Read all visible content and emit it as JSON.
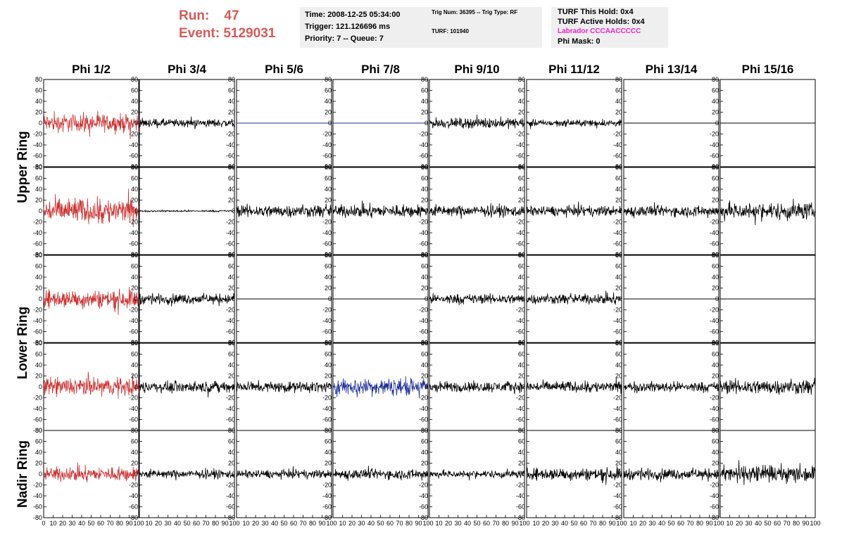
{
  "header": {
    "run_label": "Run:",
    "run_value": "47",
    "event_label": "Event:",
    "event_value": "5129031"
  },
  "time_box": {
    "time": "Time: 2008-12-25 05:34:00",
    "trigger": "Trigger: 121.126696 ms",
    "priority": "Priority: 7 -- Queue: 7"
  },
  "trig_box": {
    "trig": "Trig Num: 36395 -- Trig Type: RF",
    "turf": "TURF: 101940"
  },
  "turf_box": {
    "this_hold": "TURF This Hold: 0x4",
    "active_holds": "TURF Active Holds: 0x4",
    "labrador": "Labrador CCCAACCCCC",
    "phi_mask": "Phi Mask: 0"
  },
  "colors": {
    "red_trace": "#cc3333",
    "blue_trace": "#1f2f99",
    "black_trace": "#000000",
    "run_text": "#d55a5a",
    "labrador_text": "#ee22cc",
    "info_bg": "#efefef"
  },
  "chart_data": {
    "type": "line",
    "columns": [
      "Phi 1/2",
      "Phi 3/4",
      "Phi 5/6",
      "Phi 7/8",
      "Phi 9/10",
      "Phi 11/12",
      "Phi 13/14",
      "Phi 15/16"
    ],
    "row_groups": [
      "Upper Ring",
      "Lower Ring",
      "Nadir Ring"
    ],
    "rows": 5,
    "xlim": [
      0,
      100
    ],
    "ylim": [
      -80,
      80
    ],
    "y_ticks": [
      80,
      60,
      40,
      20,
      0,
      -20,
      -40,
      -60,
      -80
    ],
    "x_ticks": [
      0,
      10,
      20,
      30,
      40,
      50,
      60,
      70,
      80,
      90,
      100
    ],
    "panels": [
      [
        {
          "color": "red",
          "amp": 22
        },
        {
          "color": "black",
          "amp": 10
        },
        {
          "color": "blue",
          "amp": 0
        },
        {
          "color": "blue",
          "amp": 0
        },
        {
          "color": "black",
          "amp": 12
        },
        {
          "color": "black",
          "amp": 8
        },
        {
          "color": "black",
          "amp": 0
        },
        {
          "color": "black",
          "amp": 0
        }
      ],
      [
        {
          "color": "red",
          "amp": 30
        },
        {
          "color": "black",
          "amp": 2
        },
        {
          "color": "black",
          "amp": 15
        },
        {
          "color": "black",
          "amp": 15
        },
        {
          "color": "black",
          "amp": 13
        },
        {
          "color": "black",
          "amp": 12
        },
        {
          "color": "black",
          "amp": 13
        },
        {
          "color": "black",
          "amp": 20
        }
      ],
      [
        {
          "color": "red",
          "amp": 22
        },
        {
          "color": "black",
          "amp": 12
        },
        {
          "color": "black",
          "amp": 0
        },
        {
          "color": "black",
          "amp": 0
        },
        {
          "color": "black",
          "amp": 12
        },
        {
          "color": "black",
          "amp": 12
        },
        {
          "color": "black",
          "amp": 0
        },
        {
          "color": "black",
          "amp": 0
        }
      ],
      [
        {
          "color": "red",
          "amp": 22
        },
        {
          "color": "black",
          "amp": 13
        },
        {
          "color": "black",
          "amp": 13
        },
        {
          "color": "blue",
          "amp": 20
        },
        {
          "color": "black",
          "amp": 13
        },
        {
          "color": "black",
          "amp": 13
        },
        {
          "color": "black",
          "amp": 12
        },
        {
          "color": "black",
          "amp": 18
        }
      ],
      [
        {
          "color": "red",
          "amp": 17
        },
        {
          "color": "black",
          "amp": 10
        },
        {
          "color": "black",
          "amp": 10
        },
        {
          "color": "black",
          "amp": 12
        },
        {
          "color": "black",
          "amp": 9
        },
        {
          "color": "black",
          "amp": 15
        },
        {
          "color": "black",
          "amp": 13
        },
        {
          "color": "black",
          "amp": 20
        }
      ]
    ]
  }
}
